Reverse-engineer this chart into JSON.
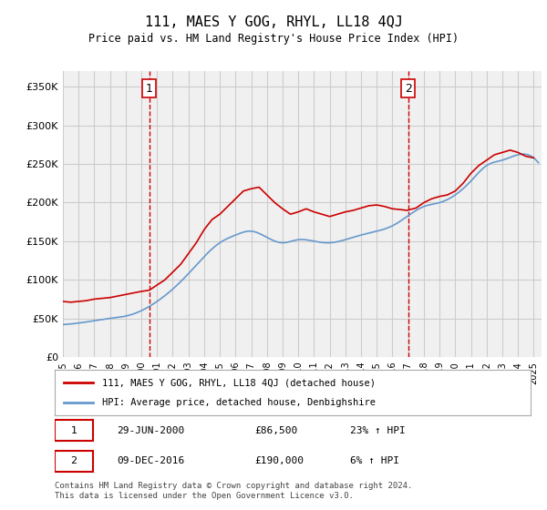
{
  "title": "111, MAES Y GOG, RHYL, LL18 4QJ",
  "subtitle": "Price paid vs. HM Land Registry's House Price Index (HPI)",
  "ylabel_ticks": [
    0,
    50000,
    100000,
    150000,
    200000,
    250000,
    300000,
    350000
  ],
  "ylabel_labels": [
    "£0",
    "£50K",
    "£100K",
    "£150K",
    "£200K",
    "£250K",
    "£300K",
    "£350K"
  ],
  "xlim": [
    1995.0,
    2025.5
  ],
  "ylim": [
    0,
    370000
  ],
  "line_color_red": "#cc0000",
  "line_color_blue": "#6699cc",
  "vline_color": "#cc0000",
  "grid_color": "#cccccc",
  "background_color": "#ffffff",
  "plot_bg_color": "#f0f0f0",
  "marker1_x": 2000.5,
  "marker1_label": "1",
  "marker2_x": 2017.0,
  "marker2_label": "2",
  "legend_line1": "111, MAES Y GOG, RHYL, LL18 4QJ (detached house)",
  "legend_line2": "HPI: Average price, detached house, Denbighshire",
  "table_row1_num": "1",
  "table_row1_date": "29-JUN-2000",
  "table_row1_price": "£86,500",
  "table_row1_hpi": "23% ↑ HPI",
  "table_row2_num": "2",
  "table_row2_date": "09-DEC-2016",
  "table_row2_price": "£190,000",
  "table_row2_hpi": "6% ↑ HPI",
  "footnote": "Contains HM Land Registry data © Crown copyright and database right 2024.\nThis data is licensed under the Open Government Licence v3.0.",
  "hpi_years": [
    1995,
    1996,
    1997,
    1998,
    1999,
    2000,
    2001,
    2002,
    2003,
    2004,
    2005,
    2006,
    2007,
    2008,
    2009,
    2010,
    2011,
    2012,
    2013,
    2014,
    2015,
    2016,
    2017,
    2018,
    2019,
    2020,
    2021,
    2022,
    2023,
    2024,
    2025
  ],
  "hpi_values": [
    42000,
    44000,
    47000,
    50000,
    53000,
    60000,
    72000,
    88000,
    108000,
    130000,
    148000,
    158000,
    163000,
    155000,
    148000,
    152000,
    150000,
    148000,
    152000,
    158000,
    163000,
    170000,
    183000,
    195000,
    200000,
    210000,
    228000,
    248000,
    255000,
    262000,
    258000
  ],
  "price_points_x": [
    2000.5,
    2016.92
  ],
  "price_points_y": [
    86500,
    190000
  ]
}
